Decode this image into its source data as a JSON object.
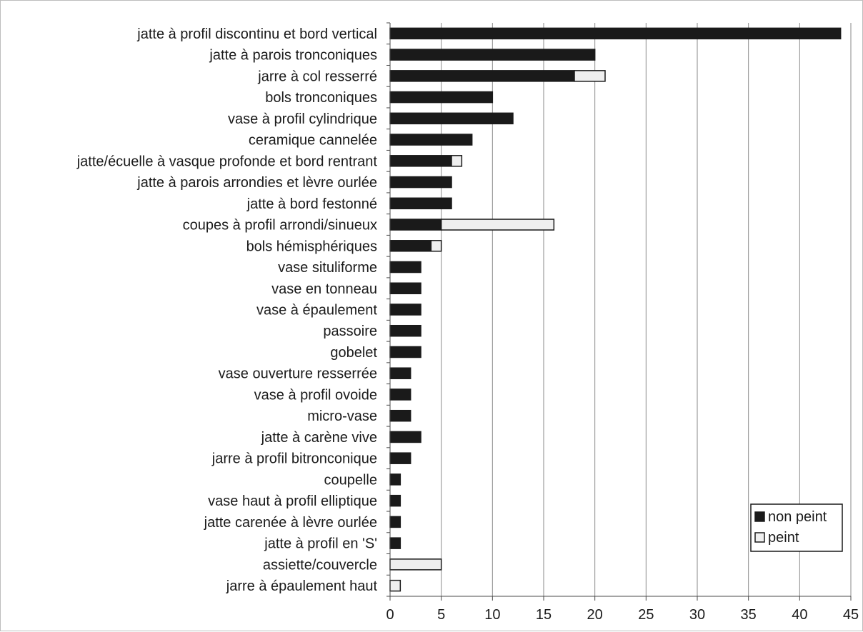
{
  "chart_data": {
    "type": "bar",
    "orientation": "horizontal",
    "stacked": true,
    "title": "",
    "xlabel": "",
    "ylabel": "",
    "xlim": [
      0,
      45
    ],
    "x_ticks": [
      "0",
      "5",
      "10",
      "15",
      "20",
      "25",
      "30",
      "35",
      "40",
      "45"
    ],
    "grid": "vertical gridlines",
    "legend_position": "bottom-right",
    "categories": [
      "jatte à profil discontinu et bord vertical",
      "jatte à parois tronconiques",
      "jarre à col resserré",
      "bols tronconiques",
      "vase à profil cylindrique",
      "ceramique cannelée",
      "jatte/écuelle à vasque profonde et bord rentrant",
      "jatte à parois arrondies et lèvre ourlée",
      "jatte à bord festonné",
      "coupes à profil arrondi/sinueux",
      "bols hémisphériques",
      "vase situliforme",
      "vase en tonneau",
      "vase à épaulement",
      "passoire",
      "gobelet",
      "vase ouverture resserrée",
      "vase à profil ovoide",
      "micro-vase",
      "jatte à carène vive",
      "jarre à profil bitronconique",
      "coupelle",
      "vase haut à profil elliptique",
      "jatte carenée à lèvre ourlée",
      "jatte à profil en 'S'",
      "assiette/couvercle",
      "jarre à épaulement haut"
    ],
    "series": [
      {
        "name": "non peint",
        "color": "#1a1a1a",
        "values": [
          44,
          20,
          18,
          10,
          12,
          8,
          6,
          6,
          6,
          5,
          4,
          3,
          3,
          3,
          3,
          3,
          2,
          2,
          2,
          3,
          2,
          1,
          1,
          1,
          1,
          0,
          0
        ]
      },
      {
        "name": "peint",
        "color": "#efefef",
        "values": [
          0,
          0,
          3,
          0,
          0,
          0,
          1,
          0,
          0,
          11,
          1,
          0,
          0,
          0,
          0,
          0,
          0,
          0,
          0,
          0,
          0,
          0,
          0,
          0,
          0,
          5,
          1
        ]
      }
    ]
  }
}
